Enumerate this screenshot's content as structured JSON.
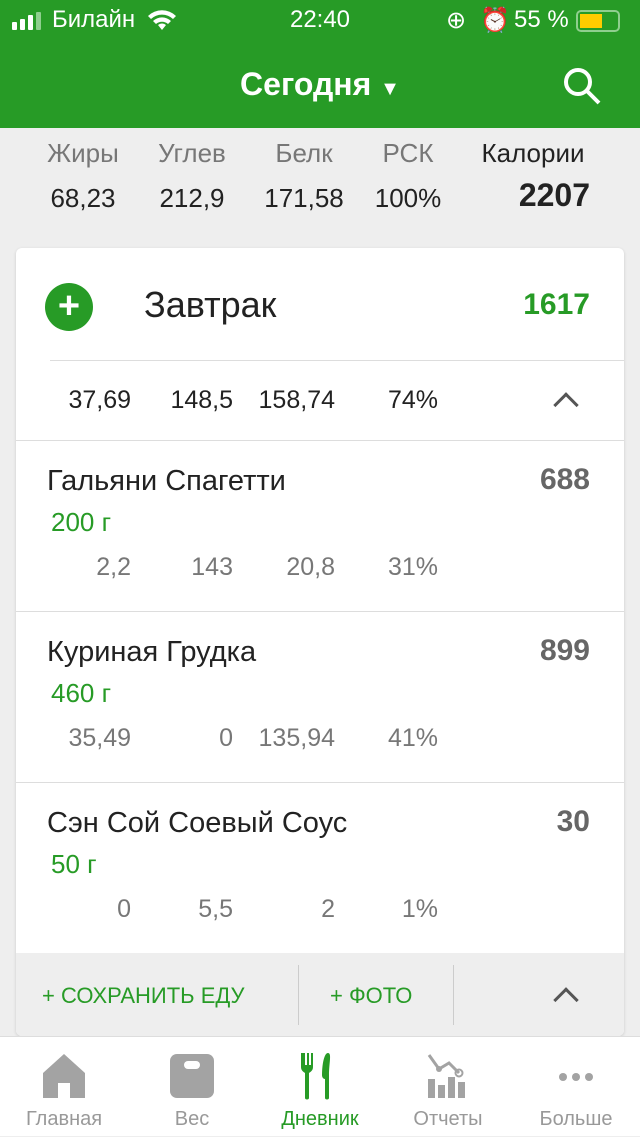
{
  "status_bar": {
    "carrier": "Билайн",
    "time": "22:40",
    "battery": "55 %",
    "battery_level": 55
  },
  "header": {
    "title": "Сегодня"
  },
  "summary": {
    "labels": [
      "Жиры",
      "Углев",
      "Белк",
      "РСК",
      "Калории"
    ],
    "values": [
      "68,23",
      "212,9",
      "171,58",
      "100%",
      "2207"
    ]
  },
  "meal": {
    "name": "Завтрак",
    "calories": "1617",
    "totals": [
      "37,69",
      "148,5",
      "158,74",
      "74%"
    ],
    "items": [
      {
        "name": "Гальяни Спагетти",
        "weight": "200 г",
        "calories": "688",
        "macros": [
          "2,2",
          "143",
          "20,8",
          "31%"
        ]
      },
      {
        "name": "Куриная Грудка",
        "weight": "460 г",
        "calories": "899",
        "macros": [
          "35,49",
          "0",
          "135,94",
          "41%"
        ]
      },
      {
        "name": "Сэн Сой Соевый Соус",
        "weight": "50 г",
        "calories": "30",
        "macros": [
          "0",
          "5,5",
          "2",
          "1%"
        ]
      }
    ],
    "save_food": "+ СОХРАНИТЬ ЕДУ",
    "photo": "+ ФОТО"
  },
  "tabs": [
    {
      "label": "Главная",
      "icon": "home-icon"
    },
    {
      "label": "Вес",
      "icon": "scale-icon"
    },
    {
      "label": "Дневник",
      "icon": "fork-knife-icon",
      "active": true
    },
    {
      "label": "Отчеты",
      "icon": "chart-icon"
    },
    {
      "label": "Больше",
      "icon": "more-icon"
    }
  ],
  "colors": {
    "brand": "#279b26",
    "battery": "#ffcc00"
  }
}
